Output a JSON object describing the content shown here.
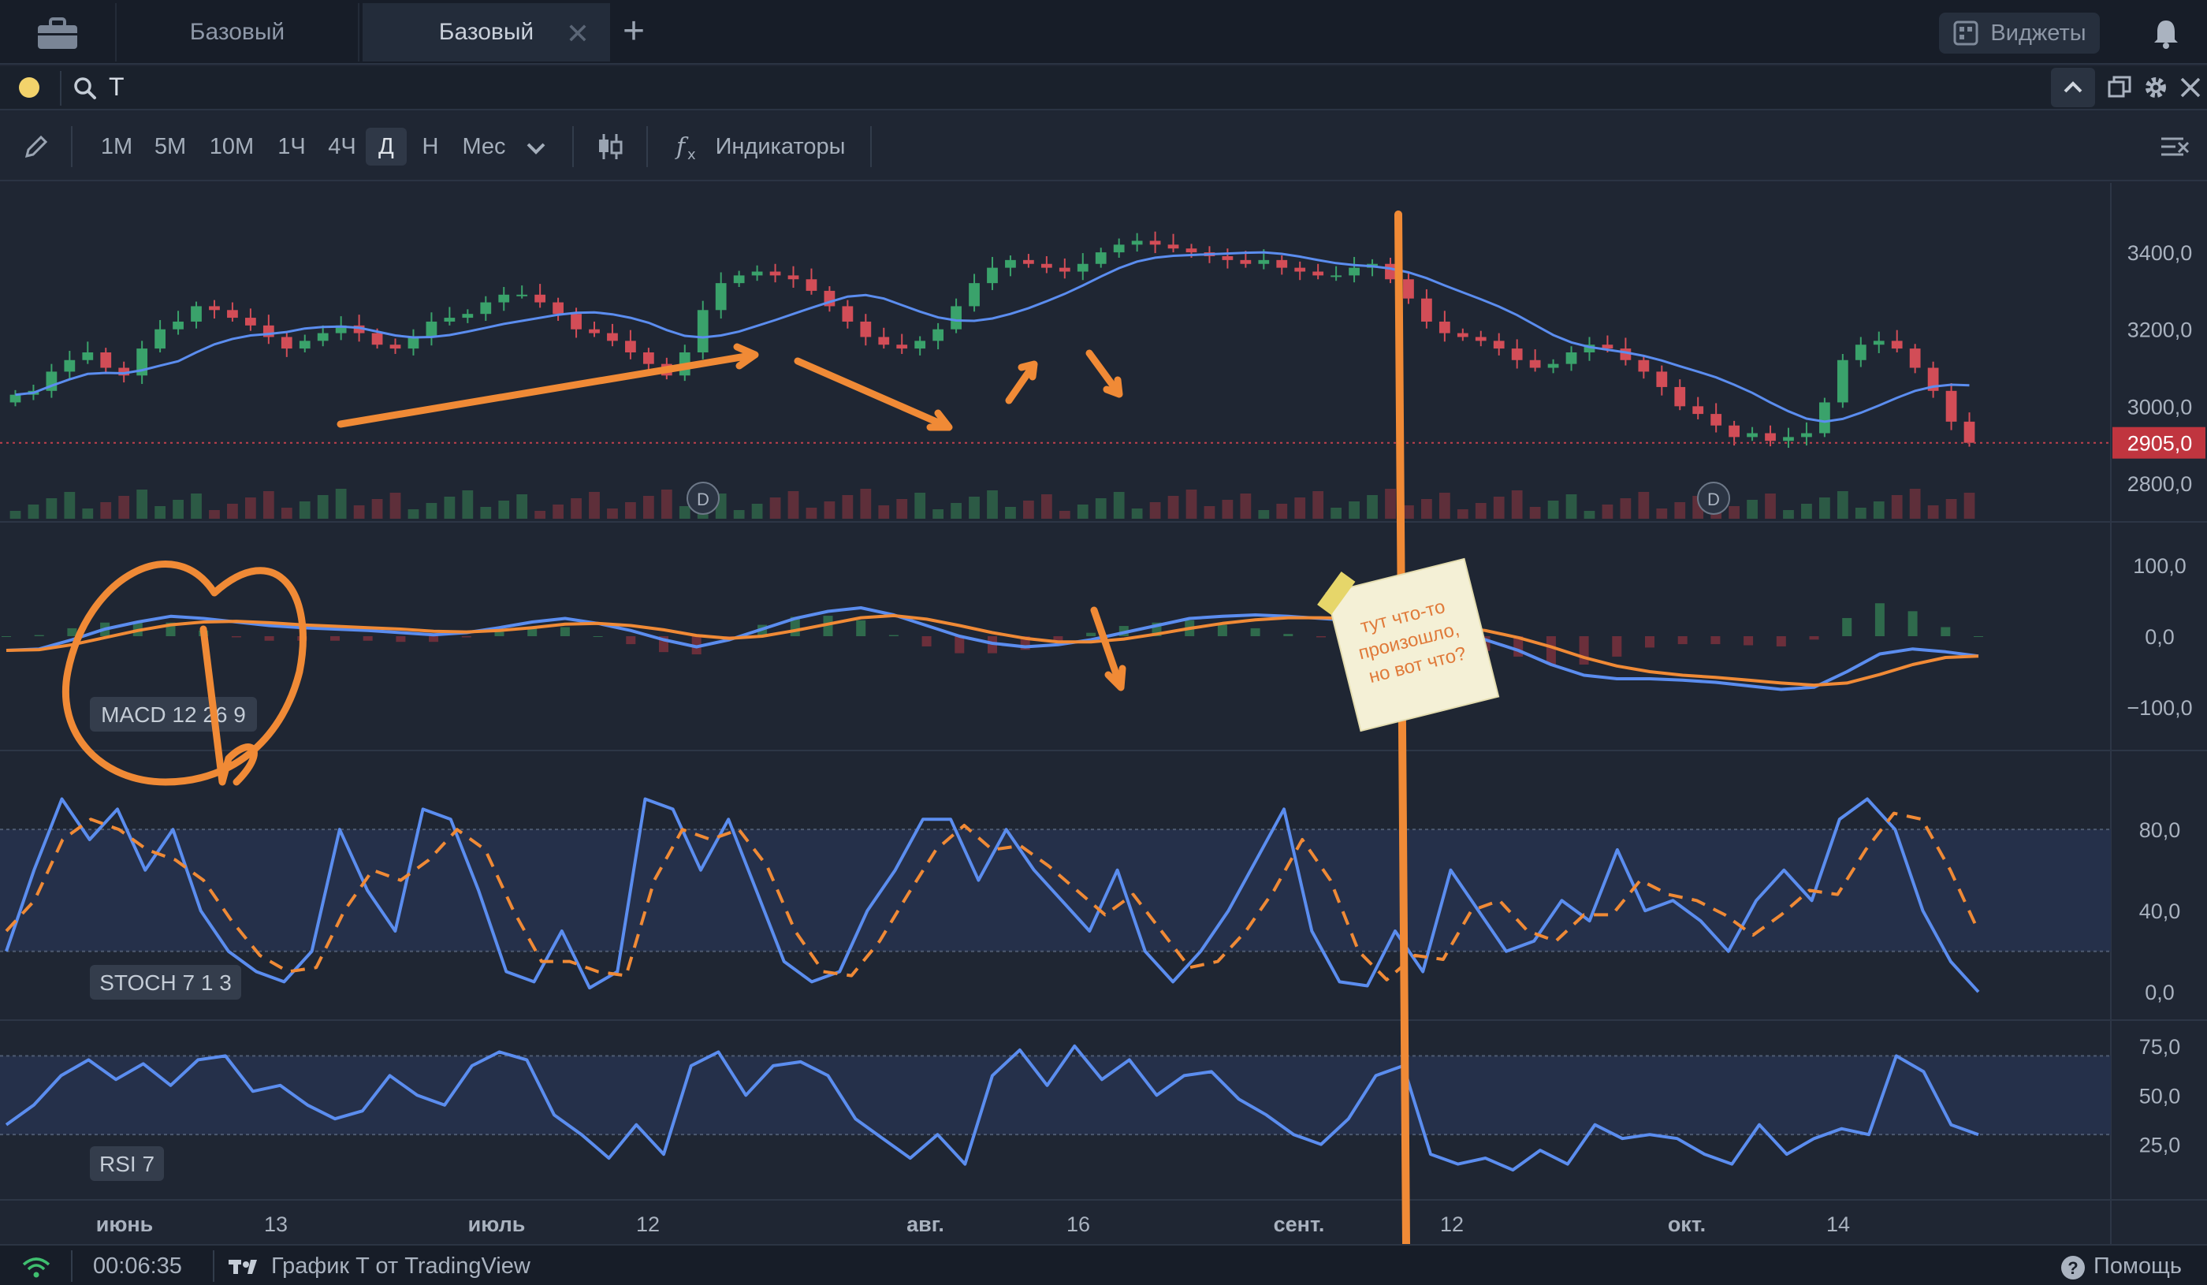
{
  "tabs": [
    {
      "label": "Базовый",
      "active": false
    },
    {
      "label": "Базовый",
      "active": true,
      "close": "✕"
    }
  ],
  "tab_add": "+",
  "widgets_label": "Виджеты",
  "symbol": "T",
  "toolbar": {
    "timeframes": [
      "1М",
      "5М",
      "10М",
      "1Ч",
      "4Ч",
      "Д",
      "Н",
      "Мес"
    ],
    "active_timeframe": "Д",
    "indicators_label": "Индикаторы"
  },
  "chart_data": [
    {
      "type": "candlestick",
      "pane": "price",
      "y_ticks": [
        "3400,0",
        "3200,0",
        "3000,0",
        "2800,0"
      ],
      "ylim": [
        2720,
        3560
      ],
      "last_price": "2905,0",
      "last_price_value": 2905,
      "ma_color": "#5b8def",
      "up_color": "#3aa26b",
      "down_color": "#d24d57",
      "dividend_markers": [
        "D",
        "D"
      ],
      "close_series": [
        3030,
        3040,
        3090,
        3120,
        3140,
        3100,
        3080,
        3150,
        3200,
        3220,
        3260,
        3250,
        3230,
        3210,
        3180,
        3150,
        3170,
        3190,
        3210,
        3190,
        3160,
        3150,
        3180,
        3220,
        3230,
        3240,
        3270,
        3290,
        3290,
        3270,
        3240,
        3200,
        3190,
        3170,
        3140,
        3110,
        3080,
        3140,
        3250,
        3320,
        3340,
        3350,
        3340,
        3330,
        3300,
        3260,
        3220,
        3180,
        3160,
        3150,
        3170,
        3200,
        3260,
        3320,
        3360,
        3380,
        3370,
        3360,
        3350,
        3370,
        3400,
        3420,
        3430,
        3420,
        3410,
        3400,
        3390,
        3380,
        3370,
        3380,
        3360,
        3350,
        3340,
        3340,
        3360,
        3370,
        3330,
        3280,
        3220,
        3190,
        3180,
        3170,
        3150,
        3120,
        3100,
        3110,
        3140,
        3160,
        3150,
        3120,
        3090,
        3050,
        3000,
        2980,
        2950,
        2920,
        2930,
        2910,
        2920,
        2930,
        3010,
        3120,
        3160,
        3170,
        3150,
        3100,
        3040,
        2960,
        2905
      ]
    },
    {
      "type": "line",
      "pane": "macd",
      "name": "MACD 12 26 9",
      "y_ticks": [
        "100,0",
        "0,0",
        "−100,0"
      ],
      "ylim": [
        -150,
        150
      ],
      "series": [
        {
          "values": [
            -20,
            -18,
            -5,
            10,
            20,
            28,
            25,
            20,
            15,
            12,
            10,
            8,
            5,
            2,
            5,
            12,
            20,
            25,
            18,
            8,
            -5,
            -15,
            -5,
            10,
            25,
            35,
            40,
            30,
            15,
            0,
            -10,
            -15,
            -12,
            -5,
            5,
            15,
            25,
            28,
            30,
            28,
            25,
            22,
            18,
            12,
            8,
            -5,
            -20,
            -40,
            -55,
            -60,
            -60,
            -62,
            -65,
            -70,
            -75,
            -72,
            -50,
            -25,
            -18,
            -22,
            -28
          ]
        },
        {
          "values": [
            -20,
            -19,
            -12,
            -2,
            8,
            16,
            20,
            21,
            19,
            16,
            14,
            12,
            10,
            7,
            6,
            8,
            12,
            17,
            18,
            15,
            9,
            1,
            -3,
            0,
            8,
            17,
            26,
            29,
            24,
            15,
            5,
            -3,
            -8,
            -8,
            -4,
            3,
            11,
            18,
            23,
            26,
            26,
            25,
            22,
            18,
            14,
            8,
            -2,
            -15,
            -30,
            -42,
            -50,
            -55,
            -58,
            -62,
            -66,
            -69,
            -66,
            -54,
            -40,
            -30,
            -28
          ]
        }
      ]
    },
    {
      "type": "line",
      "pane": "stoch",
      "name": "STOCH 7 1 3",
      "y_ticks": [
        "80,0",
        "40,0",
        "0,0"
      ],
      "ylim": [
        -10,
        115
      ],
      "band": [
        20,
        80
      ],
      "series": [
        {
          "values": [
            20,
            60,
            95,
            75,
            90,
            60,
            80,
            40,
            20,
            10,
            5,
            20,
            80,
            50,
            30,
            90,
            85,
            50,
            10,
            5,
            30,
            2,
            10,
            95,
            90,
            60,
            85,
            50,
            15,
            5,
            10,
            40,
            60,
            85,
            85,
            55,
            80,
            60,
            45,
            30,
            60,
            20,
            5,
            20,
            40,
            65,
            90,
            30,
            5,
            3,
            30,
            10,
            60,
            40,
            20,
            25,
            45,
            35,
            70,
            40,
            45,
            35,
            20,
            45,
            60,
            45,
            85,
            95,
            80,
            40,
            15,
            0
          ]
        },
        {
          "values": [
            30,
            45,
            75,
            85,
            80,
            70,
            65,
            55,
            35,
            18,
            10,
            12,
            40,
            60,
            55,
            65,
            80,
            70,
            40,
            15,
            15,
            10,
            8,
            55,
            80,
            75,
            80,
            62,
            30,
            10,
            8,
            25,
            48,
            70,
            82,
            70,
            72,
            62,
            50,
            38,
            48,
            30,
            12,
            15,
            30,
            50,
            75,
            55,
            20,
            6,
            18,
            16,
            40,
            45,
            30,
            25,
            38,
            38,
            55,
            48,
            45,
            38,
            28,
            38,
            50,
            48,
            70,
            88,
            85,
            60,
            30
          ]
        }
      ]
    },
    {
      "type": "line",
      "pane": "rsi",
      "name": "RSI 7",
      "y_ticks": [
        "75,0",
        "50,0",
        "25,0"
      ],
      "ylim": [
        0,
        85
      ],
      "band": [
        30,
        70
      ],
      "series": [
        {
          "values": [
            35,
            45,
            60,
            68,
            58,
            66,
            55,
            68,
            70,
            52,
            55,
            45,
            38,
            42,
            60,
            50,
            45,
            65,
            72,
            68,
            40,
            30,
            18,
            35,
            20,
            65,
            72,
            50,
            65,
            67,
            60,
            38,
            28,
            18,
            30,
            15,
            60,
            73,
            55,
            75,
            58,
            68,
            50,
            60,
            62,
            48,
            40,
            30,
            25,
            38,
            60,
            65,
            20,
            15,
            18,
            12,
            22,
            15,
            35,
            28,
            30,
            28,
            20,
            15,
            35,
            20,
            28,
            33,
            30,
            70,
            62,
            35,
            30
          ]
        }
      ]
    }
  ],
  "x_ticks": [
    "июнь",
    "13",
    "июль",
    "12",
    "авг.",
    "16",
    "сент.",
    "12",
    "окт.",
    "14"
  ],
  "annotation_note": "тут что-то произошло, но вот что?",
  "status": {
    "time": "00:06:35",
    "credit": "График T от TradingView",
    "help": "Помощь"
  }
}
